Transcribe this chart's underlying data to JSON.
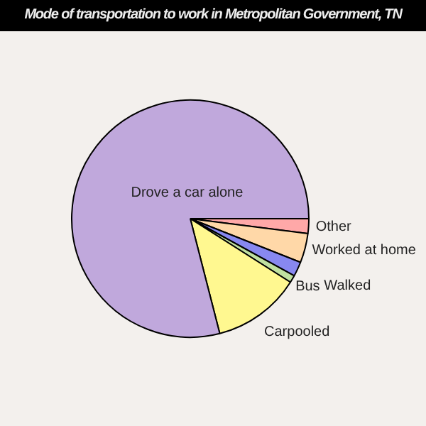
{
  "chart_data": {
    "type": "pie",
    "title": "Mode of transportation to work in Metropolitan Government, TN",
    "categories": [
      "Other",
      "Worked at home",
      "Bus",
      "Walked",
      "Carpooled",
      "Drove a car alone"
    ],
    "values": [
      2,
      4,
      2,
      1,
      12,
      79
    ],
    "colors": [
      "#ffa8a8",
      "#ffd8a8",
      "#8888f0",
      "#c0e0a0",
      "#fff890",
      "#c0a8dc"
    ],
    "legend": false
  }
}
